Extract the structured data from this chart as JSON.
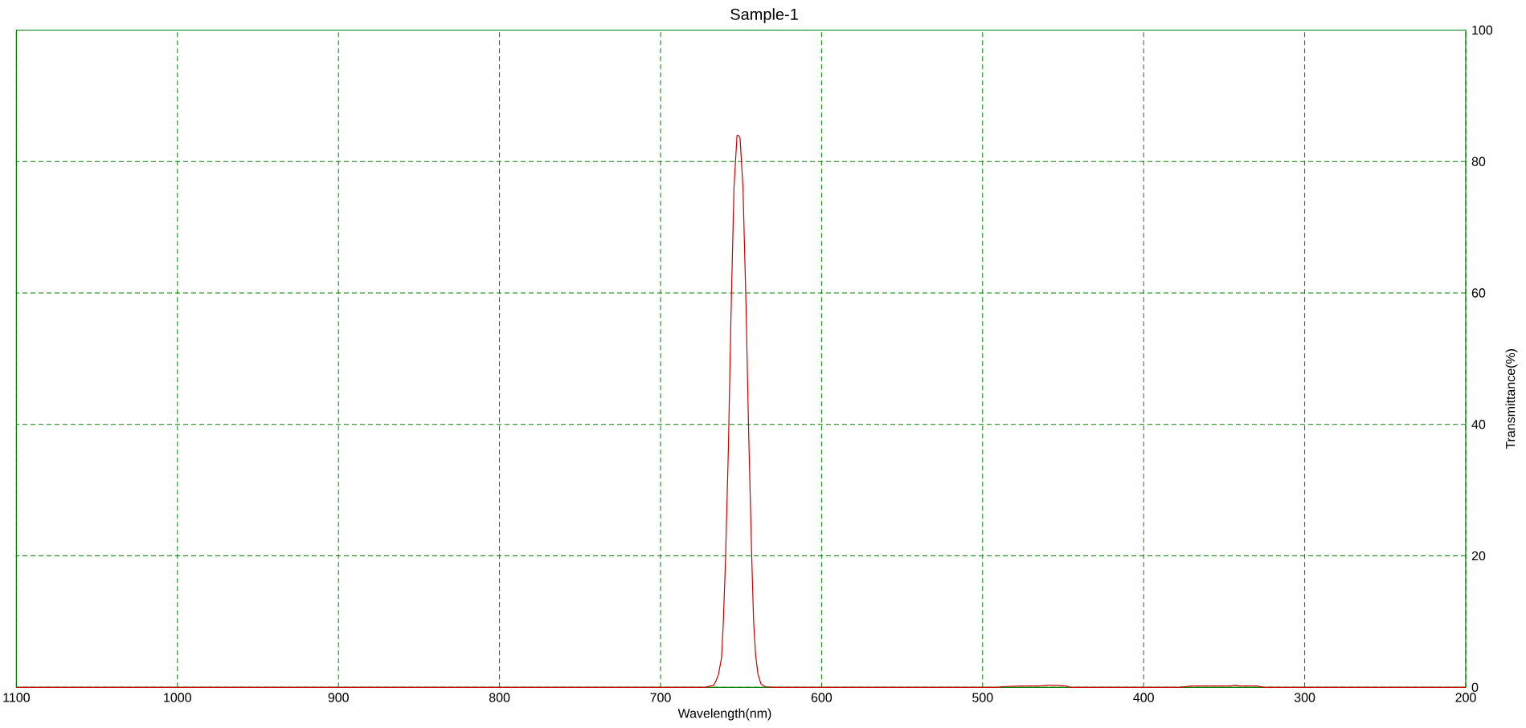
{
  "chart_data": {
    "type": "line",
    "title": "Sample-1",
    "xlabel": "Wavelength(nm)",
    "ylabel": "Transmittance(%)",
    "x": [
      200,
      325,
      330,
      340,
      343,
      346,
      370,
      378,
      446,
      448,
      455,
      460,
      465,
      475,
      488,
      490,
      630,
      635,
      637.6,
      639.5,
      641,
      642.2,
      643.4,
      645.3,
      646.9,
      648.8,
      650.6,
      651.6,
      652.5,
      654.4,
      656.3,
      657.9,
      659.7,
      661,
      662.1,
      664,
      665.5,
      667,
      672.5,
      1100
    ],
    "series": [
      {
        "color": "#cc0000",
        "values": [
          0,
          0,
          0.2,
          0.2,
          0.3,
          0.2,
          0.2,
          0,
          0,
          0.2,
          0.3,
          0.3,
          0.2,
          0.2,
          0.1,
          0,
          0,
          0.1,
          0.5,
          2,
          5,
          10,
          20,
          39,
          58,
          76,
          83.5,
          84,
          84,
          76,
          56,
          36,
          19,
          10,
          4.5,
          2,
          1,
          0.3,
          0,
          0
        ]
      }
    ],
    "xlim": [
      1100,
      200
    ],
    "ylim": [
      0,
      100
    ],
    "xticks": [
      1100,
      1000,
      900,
      800,
      700,
      600,
      500,
      400,
      300,
      200
    ],
    "yticks": [
      0,
      20,
      40,
      60,
      80,
      100
    ],
    "grid": true,
    "marker": "none",
    "line_style": "solid"
  }
}
